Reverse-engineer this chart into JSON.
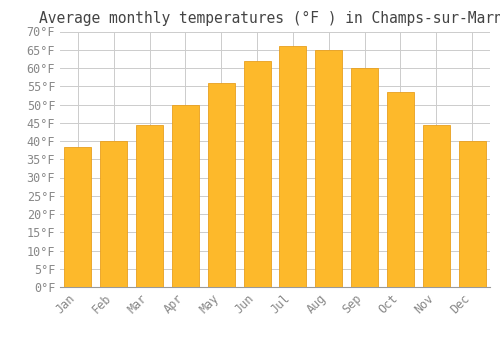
{
  "title": "Average monthly temperatures (°F ) in Champs-sur-Marne",
  "months": [
    "Jan",
    "Feb",
    "Mar",
    "Apr",
    "May",
    "Jun",
    "Jul",
    "Aug",
    "Sep",
    "Oct",
    "Nov",
    "Dec"
  ],
  "values": [
    38.3,
    40.0,
    44.5,
    50.0,
    56.0,
    62.0,
    66.0,
    65.0,
    60.0,
    53.5,
    44.5,
    40.0
  ],
  "bar_color": "#FDB92B",
  "bar_edge_color": "#E8A020",
  "background_color": "#FFFFFF",
  "grid_color": "#CCCCCC",
  "ylim": [
    0,
    70
  ],
  "ytick_step": 5,
  "title_fontsize": 10.5,
  "tick_fontsize": 8.5,
  "font_family": "monospace",
  "tick_color": "#888888",
  "title_color": "#444444"
}
